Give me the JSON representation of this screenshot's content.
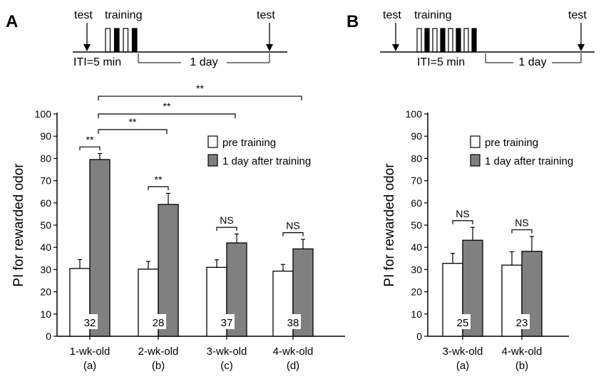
{
  "panels": [
    {
      "letter": "A",
      "protocol": {
        "test_before": "test",
        "training": "training",
        "test_after": "test",
        "iti": "ITI=5 min",
        "interval": "1 day"
      }
    },
    {
      "letter": "B",
      "protocol": {
        "test_before": "test",
        "training": "training",
        "test_after": "test",
        "iti": "ITI=5 min",
        "interval": "1 day"
      }
    }
  ],
  "chart_data": [
    {
      "type": "bar",
      "panel": "A",
      "title": "",
      "xlabel": "",
      "ylabel": "PI for rewarded odor",
      "ylim": [
        0,
        100
      ],
      "yticks": [
        0,
        10,
        20,
        30,
        40,
        50,
        60,
        70,
        80,
        90,
        100
      ],
      "legend": {
        "placement": "top-right"
      },
      "categories": [
        "1-wk-old",
        "2-wk-old",
        "3-wk-old",
        "4-wk-old"
      ],
      "subcategories": [
        "(a)",
        "(b)",
        "(c)",
        "(d)"
      ],
      "series": [
        {
          "name": "pre training",
          "color": "#ffffff",
          "values": [
            30.5,
            30.2,
            31,
            29.3
          ],
          "errors": [
            4,
            3.5,
            3.4,
            3
          ]
        },
        {
          "name": "1 day after training",
          "color": "#808080",
          "values": [
            79.5,
            59.3,
            42,
            39.3
          ],
          "errors": [
            2.7,
            5,
            4,
            4.3
          ]
        }
      ],
      "n": [
        "32",
        "28",
        "37",
        "38"
      ],
      "within_sig": [
        "**",
        "**",
        "NS",
        "NS"
      ],
      "between_sig": [
        {
          "from": 0,
          "to": 1,
          "label": "**",
          "y": 93
        },
        {
          "from": 0,
          "to": 2,
          "label": "**",
          "y": 100
        },
        {
          "from": 0,
          "to": 3,
          "label": "**",
          "y": 108
        }
      ]
    },
    {
      "type": "bar",
      "panel": "B",
      "title": "",
      "xlabel": "",
      "ylabel": "PI for rewarded odor",
      "ylim": [
        0,
        100
      ],
      "yticks": [
        0,
        10,
        20,
        30,
        40,
        50,
        60,
        70,
        80,
        90,
        100
      ],
      "legend": {
        "placement": "top-right"
      },
      "categories": [
        "3-wk-old",
        "4-wk-old"
      ],
      "subcategories": [
        "(a)",
        "(b)"
      ],
      "series": [
        {
          "name": "pre training",
          "color": "#ffffff",
          "values": [
            32.8,
            32
          ],
          "errors": [
            4.5,
            6
          ]
        },
        {
          "name": "1 day after training",
          "color": "#808080",
          "values": [
            43.2,
            38.2
          ],
          "errors": [
            5.8,
            6.7
          ]
        }
      ],
      "n": [
        "25",
        "23"
      ],
      "within_sig": [
        "NS",
        "NS"
      ],
      "between_sig": []
    }
  ]
}
